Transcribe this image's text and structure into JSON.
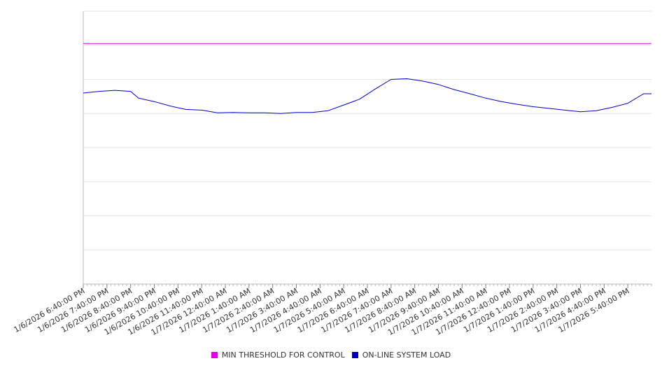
{
  "chart_data": {
    "type": "line",
    "title": "",
    "xlabel": "",
    "ylabel": "",
    "grid": true,
    "legend_position": "bottom",
    "ylim": [
      0,
      8
    ],
    "x_tick_labels": [
      "1/6/2026 6:40:00 PM",
      "1/6/2026 7:40:00 PM",
      "1/6/2026 8:40:00 PM",
      "1/6/2026 9:40:00 PM",
      "1/6/2026 10:40:00 PM",
      "1/6/2026 11:40:00 PM",
      "1/7/2026 12:40:00 AM",
      "1/7/2026 1:40:00 AM",
      "1/7/2026 2:40:00 AM",
      "1/7/2026 3:40:00 AM",
      "1/7/2026 4:40:00 AM",
      "1/7/2026 5:40:00 AM",
      "1/7/2026 6:40:00 AM",
      "1/7/2026 7:40:00 AM",
      "1/7/2026 8:40:00 AM",
      "1/7/2026 9:40:00 AM",
      "1/7/2026 10:40:00 AM",
      "1/7/2026 11:40:00 AM",
      "1/7/2026 12:40:00 PM",
      "1/7/2026 1:40:00 PM",
      "1/7/2026 2:40:00 PM",
      "1/7/2026 3:40:00 PM",
      "1/7/2026 4:40:00 PM",
      "1/7/2026 5:40:00 PM"
    ],
    "x_range": [
      "1/6/2026 6:40:00 PM",
      "1/7/2026 6:40:00 PM"
    ],
    "series": [
      {
        "name": "MIN THRESHOLD FOR CONTROL",
        "color": "#e000e0",
        "style": "constant",
        "x": [
          "1/6/2026 6:40:00 PM",
          "1/7/2026 6:40:00 PM"
        ],
        "values": [
          7.05,
          7.05
        ]
      },
      {
        "name": "ON-LINE SYSTEM LOAD",
        "color": "#0000c0",
        "x": [
          "1/6/2026 6:40:00 PM",
          "1/6/2026 7:20:00 PM",
          "1/6/2026 8:00:00 PM",
          "1/6/2026 8:40:00 PM",
          "1/6/2026 9:00:00 PM",
          "1/6/2026 9:40:00 PM",
          "1/6/2026 10:20:00 PM",
          "1/6/2026 11:00:00 PM",
          "1/6/2026 11:40:00 PM",
          "1/7/2026 12:20:00 AM",
          "1/7/2026 1:00:00 AM",
          "1/7/2026 1:40:00 AM",
          "1/7/2026 2:20:00 AM",
          "1/7/2026 3:00:00 AM",
          "1/7/2026 3:40:00 AM",
          "1/7/2026 4:20:00 AM",
          "1/7/2026 5:00:00 AM",
          "1/7/2026 5:40:00 AM",
          "1/7/2026 6:20:00 AM",
          "1/7/2026 7:00:00 AM",
          "1/7/2026 7:40:00 AM",
          "1/7/2026 8:20:00 AM",
          "1/7/2026 9:00:00 AM",
          "1/7/2026 9:40:00 AM",
          "1/7/2026 10:20:00 AM",
          "1/7/2026 11:00:00 AM",
          "1/7/2026 11:40:00 AM",
          "1/7/2026 12:20:00 PM",
          "1/7/2026 1:00:00 PM",
          "1/7/2026 1:40:00 PM",
          "1/7/2026 2:20:00 PM",
          "1/7/2026 3:00:00 PM",
          "1/7/2026 3:40:00 PM",
          "1/7/2026 4:20:00 PM",
          "1/7/2026 5:00:00 PM",
          "1/7/2026 5:40:00 PM",
          "1/7/2026 6:20:00 PM",
          "1/7/2026 6:40:00 PM"
        ],
        "values": [
          5.6,
          5.65,
          5.68,
          5.65,
          5.45,
          5.35,
          5.22,
          5.12,
          5.1,
          5.02,
          5.03,
          5.02,
          5.02,
          5.0,
          5.03,
          5.03,
          5.08,
          5.25,
          5.42,
          5.72,
          6.0,
          6.02,
          5.95,
          5.85,
          5.7,
          5.58,
          5.45,
          5.35,
          5.27,
          5.2,
          5.15,
          5.1,
          5.05,
          5.08,
          5.18,
          5.3,
          5.58,
          5.58
        ]
      }
    ]
  }
}
